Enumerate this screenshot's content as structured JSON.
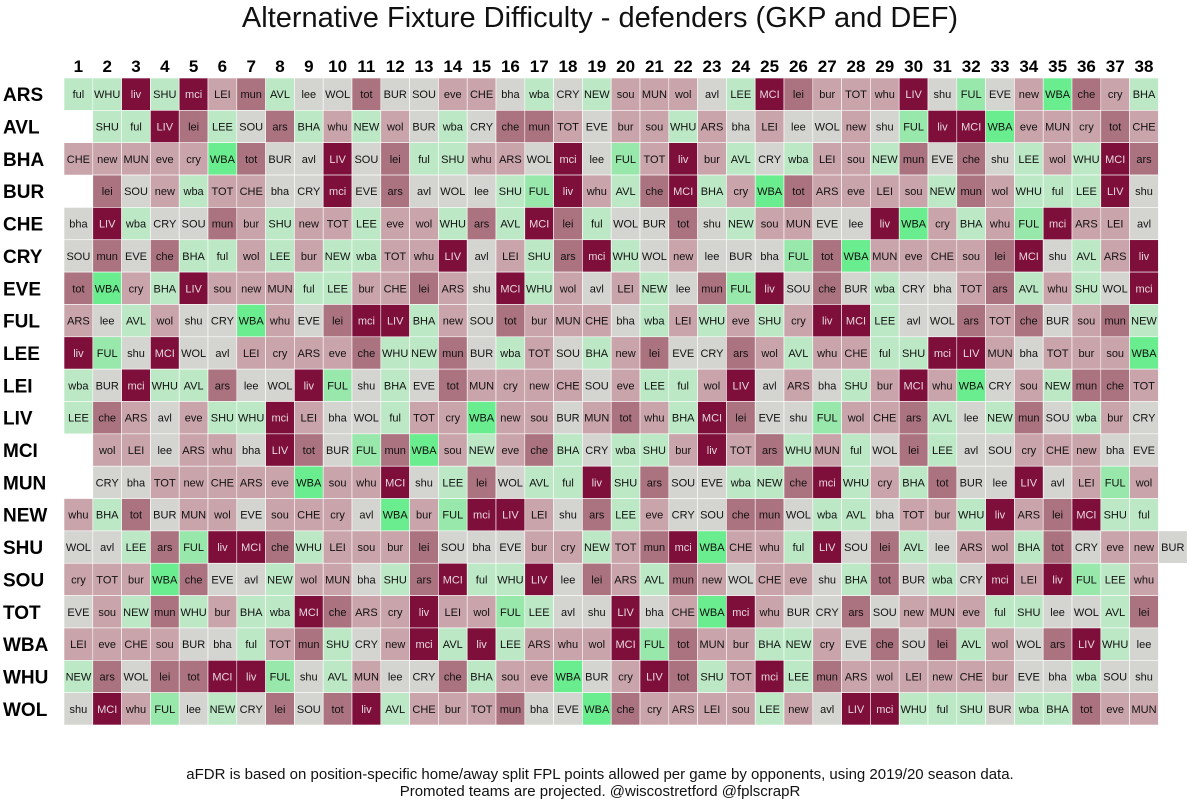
{
  "chart_data": {
    "type": "heatmap",
    "title": "Alternative Fixture Difficulty - defenders (GKP and DEF)",
    "gameweeks": [
      "1",
      "2",
      "3",
      "4",
      "5",
      "6",
      "7",
      "8",
      "9",
      "10",
      "11",
      "12",
      "13",
      "14",
      "15",
      "16",
      "17",
      "18",
      "19",
      "20",
      "21",
      "22",
      "23",
      "24",
      "25",
      "26",
      "27",
      "28",
      "29",
      "30",
      "31",
      "32",
      "33",
      "34",
      "35",
      "36",
      "37",
      "38"
    ],
    "teams": [
      "ARS",
      "AVL",
      "BHA",
      "BUR",
      "CHE",
      "CRY",
      "EVE",
      "FUL",
      "LEE",
      "LEI",
      "LIV",
      "MCI",
      "MUN",
      "NEW",
      "SHU",
      "SOU",
      "TOT",
      "WBA",
      "WHU",
      "WOL"
    ],
    "fixtures": [
      [
        "ful",
        "WHU",
        "liv",
        "SHU",
        "mci",
        "LEI",
        "mun",
        "AVL",
        "lee",
        "WOL",
        "tot",
        "BUR",
        "SOU",
        "eve",
        "CHE",
        "bha",
        "wba",
        "CRY",
        "NEW",
        "sou",
        "MUN",
        "wol",
        "avl",
        "LEE",
        "MCI",
        "lei",
        "bur",
        "TOT",
        "whu",
        "LIV",
        "shu",
        "FUL",
        "EVE",
        "new",
        "WBA",
        "che",
        "cry",
        "BHA"
      ],
      [
        "",
        "SHU",
        "ful",
        "LIV",
        "lei",
        "LEE",
        "SOU",
        "ars",
        "BHA",
        "whu",
        "NEW",
        "wol",
        "BUR",
        "wba",
        "CRY",
        "che",
        "mun",
        "TOT",
        "EVE",
        "bur",
        "sou",
        "WHU",
        "ARS",
        "bha",
        "LEI",
        "lee",
        "WOL",
        "new",
        "shu",
        "FUL",
        "liv",
        "MCI",
        "WBA",
        "eve",
        "MUN",
        "cry",
        "tot",
        "CHE"
      ],
      [
        "CHE",
        "new",
        "MUN",
        "eve",
        "cry",
        "WBA",
        "tot",
        "BUR",
        "avl",
        "LIV",
        "SOU",
        "lei",
        "ful",
        "SHU",
        "whu",
        "ARS",
        "WOL",
        "mci",
        "lee",
        "FUL",
        "TOT",
        "liv",
        "bur",
        "AVL",
        "CRY",
        "wba",
        "LEI",
        "sou",
        "NEW",
        "mun",
        "EVE",
        "che",
        "shu",
        "LEE",
        "wol",
        "WHU",
        "MCI",
        "ars"
      ],
      [
        "",
        "lei",
        "SOU",
        "new",
        "wba",
        "TOT",
        "CHE",
        "bha",
        "CRY",
        "mci",
        "EVE",
        "ars",
        "avl",
        "WOL",
        "lee",
        "SHU",
        "FUL",
        "liv",
        "whu",
        "AVL",
        "che",
        "MCI",
        "BHA",
        "cry",
        "WBA",
        "tot",
        "ARS",
        "eve",
        "LEI",
        "sou",
        "NEW",
        "mun",
        "wol",
        "WHU",
        "ful",
        "LEE",
        "LIV",
        "shu"
      ],
      [
        "bha",
        "LIV",
        "wba",
        "CRY",
        "SOU",
        "mun",
        "bur",
        "SHU",
        "new",
        "TOT",
        "LEE",
        "eve",
        "wol",
        "WHU",
        "ars",
        "AVL",
        "MCI",
        "lei",
        "ful",
        "WOL",
        "BUR",
        "tot",
        "shu",
        "NEW",
        "sou",
        "MUN",
        "EVE",
        "lee",
        "liv",
        "WBA",
        "cry",
        "BHA",
        "whu",
        "FUL",
        "mci",
        "ARS",
        "LEI",
        "avl"
      ],
      [
        "SOU",
        "mun",
        "EVE",
        "che",
        "BHA",
        "ful",
        "wol",
        "LEE",
        "bur",
        "NEW",
        "wba",
        "TOT",
        "whu",
        "LIV",
        "avl",
        "LEI",
        "SHU",
        "ars",
        "mci",
        "WHU",
        "WOL",
        "new",
        "lee",
        "BUR",
        "bha",
        "FUL",
        "tot",
        "WBA",
        "MUN",
        "eve",
        "CHE",
        "sou",
        "lei",
        "MCI",
        "shu",
        "AVL",
        "ARS",
        "liv"
      ],
      [
        "tot",
        "WBA",
        "cry",
        "BHA",
        "LIV",
        "sou",
        "new",
        "MUN",
        "ful",
        "LEE",
        "bur",
        "CHE",
        "lei",
        "ARS",
        "shu",
        "MCI",
        "WHU",
        "wol",
        "avl",
        "LEI",
        "NEW",
        "lee",
        "mun",
        "FUL",
        "liv",
        "SOU",
        "che",
        "BUR",
        "wba",
        "CRY",
        "bha",
        "TOT",
        "ars",
        "AVL",
        "whu",
        "SHU",
        "WOL",
        "mci"
      ],
      [
        "ARS",
        "lee",
        "AVL",
        "wol",
        "shu",
        "CRY",
        "WBA",
        "whu",
        "EVE",
        "lei",
        "mci",
        "LIV",
        "BHA",
        "new",
        "SOU",
        "tot",
        "bur",
        "MUN",
        "CHE",
        "bha",
        "wba",
        "LEI",
        "WHU",
        "eve",
        "SHU",
        "cry",
        "liv",
        "MCI",
        "LEE",
        "avl",
        "WOL",
        "ars",
        "TOT",
        "che",
        "BUR",
        "sou",
        "mun",
        "NEW"
      ],
      [
        "liv",
        "FUL",
        "shu",
        "MCI",
        "WOL",
        "avl",
        "LEI",
        "cry",
        "ARS",
        "eve",
        "che",
        "WHU",
        "NEW",
        "mun",
        "BUR",
        "wba",
        "TOT",
        "SOU",
        "BHA",
        "new",
        "lei",
        "EVE",
        "CRY",
        "ars",
        "wol",
        "AVL",
        "whu",
        "CHE",
        "ful",
        "SHU",
        "mci",
        "LIV",
        "MUN",
        "bha",
        "TOT",
        "bur",
        "sou",
        "WBA"
      ],
      [
        "wba",
        "BUR",
        "mci",
        "WHU",
        "AVL",
        "ars",
        "lee",
        "WOL",
        "liv",
        "FUL",
        "shu",
        "BHA",
        "EVE",
        "tot",
        "MUN",
        "cry",
        "new",
        "CHE",
        "SOU",
        "eve",
        "LEE",
        "ful",
        "wol",
        "LIV",
        "avl",
        "ARS",
        "bha",
        "SHU",
        "bur",
        "MCI",
        "whu",
        "WBA",
        "CRY",
        "sou",
        "NEW",
        "mun",
        "che",
        "TOT"
      ],
      [
        "LEE",
        "che",
        "ARS",
        "avl",
        "eve",
        "SHU",
        "WHU",
        "mci",
        "LEI",
        "bha",
        "WOL",
        "ful",
        "TOT",
        "cry",
        "WBA",
        "new",
        "sou",
        "BUR",
        "MUN",
        "tot",
        "whu",
        "BHA",
        "MCI",
        "lei",
        "EVE",
        "shu",
        "FUL",
        "wol",
        "CHE",
        "ars",
        "AVL",
        "lee",
        "NEW",
        "mun",
        "SOU",
        "wba",
        "bur",
        "CRY"
      ],
      [
        "",
        "wol",
        "LEI",
        "lee",
        "ARS",
        "whu",
        "bha",
        "LIV",
        "tot",
        "BUR",
        "FUL",
        "mun",
        "WBA",
        "sou",
        "NEW",
        "eve",
        "che",
        "BHA",
        "CRY",
        "wba",
        "SHU",
        "bur",
        "liv",
        "TOT",
        "ars",
        "WHU",
        "MUN",
        "ful",
        "WOL",
        "lei",
        "LEE",
        "avl",
        "SOU",
        "cry",
        "CHE",
        "new",
        "bha",
        "EVE"
      ],
      [
        "",
        "CRY",
        "bha",
        "TOT",
        "new",
        "CHE",
        "ARS",
        "eve",
        "WBA",
        "sou",
        "whu",
        "MCI",
        "shu",
        "LEE",
        "lei",
        "WOL",
        "AVL",
        "ful",
        "liv",
        "SHU",
        "ars",
        "SOU",
        "EVE",
        "wba",
        "NEW",
        "che",
        "mci",
        "WHU",
        "cry",
        "BHA",
        "tot",
        "BUR",
        "lee",
        "LIV",
        "avl",
        "LEI",
        "FUL",
        "wol"
      ],
      [
        "whu",
        "BHA",
        "tot",
        "BUR",
        "MUN",
        "wol",
        "EVE",
        "sou",
        "CHE",
        "cry",
        "avl",
        "WBA",
        "bur",
        "FUL",
        "mci",
        "LIV",
        "LEI",
        "shu",
        "ars",
        "LEE",
        "eve",
        "CRY",
        "SOU",
        "che",
        "mun",
        "WOL",
        "wba",
        "AVL",
        "bha",
        "TOT",
        "bur",
        "WHU",
        "liv",
        "ARS",
        "lei",
        "MCI",
        "SHU",
        "ful"
      ],
      [
        "WOL",
        "avl",
        "LEE",
        "ars",
        "FUL",
        "liv",
        "MCI",
        "che",
        "WHU",
        "LEI",
        "sou",
        "bur",
        "lei",
        "SOU",
        "bha",
        "EVE",
        "bur",
        "cry",
        "NEW",
        "TOT",
        "mun",
        "mci",
        "WBA",
        "CHE",
        "whu",
        "ful",
        "LIV",
        "SOU",
        "lei",
        "AVL",
        "lee",
        "ARS",
        "wol",
        "BHA",
        "tot",
        "CRY",
        "eve",
        "new",
        "BUR"
      ],
      [
        "cry",
        "TOT",
        "bur",
        "WBA",
        "che",
        "EVE",
        "avl",
        "NEW",
        "wol",
        "MUN",
        "bha",
        "SHU",
        "ars",
        "MCI",
        "ful",
        "WHU",
        "LIV",
        "lee",
        "lei",
        "ARS",
        "AVL",
        "mun",
        "new",
        "WOL",
        "CHE",
        "eve",
        "shu",
        "BHA",
        "tot",
        "BUR",
        "wba",
        "CRY",
        "mci",
        "LEI",
        "liv",
        "FUL",
        "LEE",
        "whu"
      ],
      [
        "EVE",
        "sou",
        "NEW",
        "mun",
        "WHU",
        "bur",
        "BHA",
        "wba",
        "MCI",
        "che",
        "ARS",
        "cry",
        "liv",
        "LEI",
        "wol",
        "FUL",
        "LEE",
        "avl",
        "shu",
        "LIV",
        "bha",
        "CHE",
        "WBA",
        "mci",
        "whu",
        "BUR",
        "CRY",
        "ars",
        "SOU",
        "new",
        "MUN",
        "eve",
        "ful",
        "SHU",
        "lee",
        "WOL",
        "AVL",
        "lei"
      ],
      [
        "LEI",
        "eve",
        "CHE",
        "sou",
        "BUR",
        "bha",
        "ful",
        "TOT",
        "mun",
        "SHU",
        "CRY",
        "new",
        "mci",
        "AVL",
        "liv",
        "LEE",
        "ARS",
        "whu",
        "wol",
        "MCI",
        "FUL",
        "tot",
        "MUN",
        "bur",
        "BHA",
        "NEW",
        "cry",
        "EVE",
        "che",
        "SOU",
        "lei",
        "AVL",
        "wol",
        "WOL",
        "ars",
        "LIV",
        "WHU",
        "lee"
      ],
      [
        "NEW",
        "ars",
        "WOL",
        "lei",
        "tot",
        "MCI",
        "liv",
        "FUL",
        "shu",
        "AVL",
        "MUN",
        "lee",
        "CRY",
        "che",
        "BHA",
        "sou",
        "eve",
        "WBA",
        "BUR",
        "cry",
        "LIV",
        "tot",
        "SHU",
        "TOT",
        "mci",
        "LEE",
        "mun",
        "ARS",
        "wol",
        "LEI",
        "new",
        "CHE",
        "bur",
        "EVE",
        "bha",
        "wba",
        "SOU",
        "shu"
      ],
      [
        "shu",
        "MCI",
        "whu",
        "FUL",
        "lee",
        "NEW",
        "CRY",
        "lei",
        "SOU",
        "tot",
        "liv",
        "AVL",
        "CHE",
        "bur",
        "TOT",
        "mun",
        "bha",
        "EVE",
        "WBA",
        "che",
        "cry",
        "ARS",
        "LEI",
        "sou",
        "LEE",
        "new",
        "avl",
        "LIV",
        "mci",
        "WHU",
        "ful",
        "SHU",
        "BUR",
        "wba",
        "BHA",
        "tot",
        "eve",
        "MUN"
      ]
    ]
  },
  "palette": {
    "very_hard": "#7e0f3b",
    "hard": "#ab737f",
    "medium_hard": "#c9a4aa",
    "neutral": "#d4d4d0",
    "medium_easy": "#bce8c6",
    "easy": "#98e8ac",
    "very_easy": "#6aed8e"
  },
  "footnote": {
    "line1": "aFDR is based on position-specific home/away split FPL points allowed per game by opponents, using 2019/20 season data.",
    "line2": "Promoted teams are projected. @wiscostretford @fplscrapR"
  }
}
